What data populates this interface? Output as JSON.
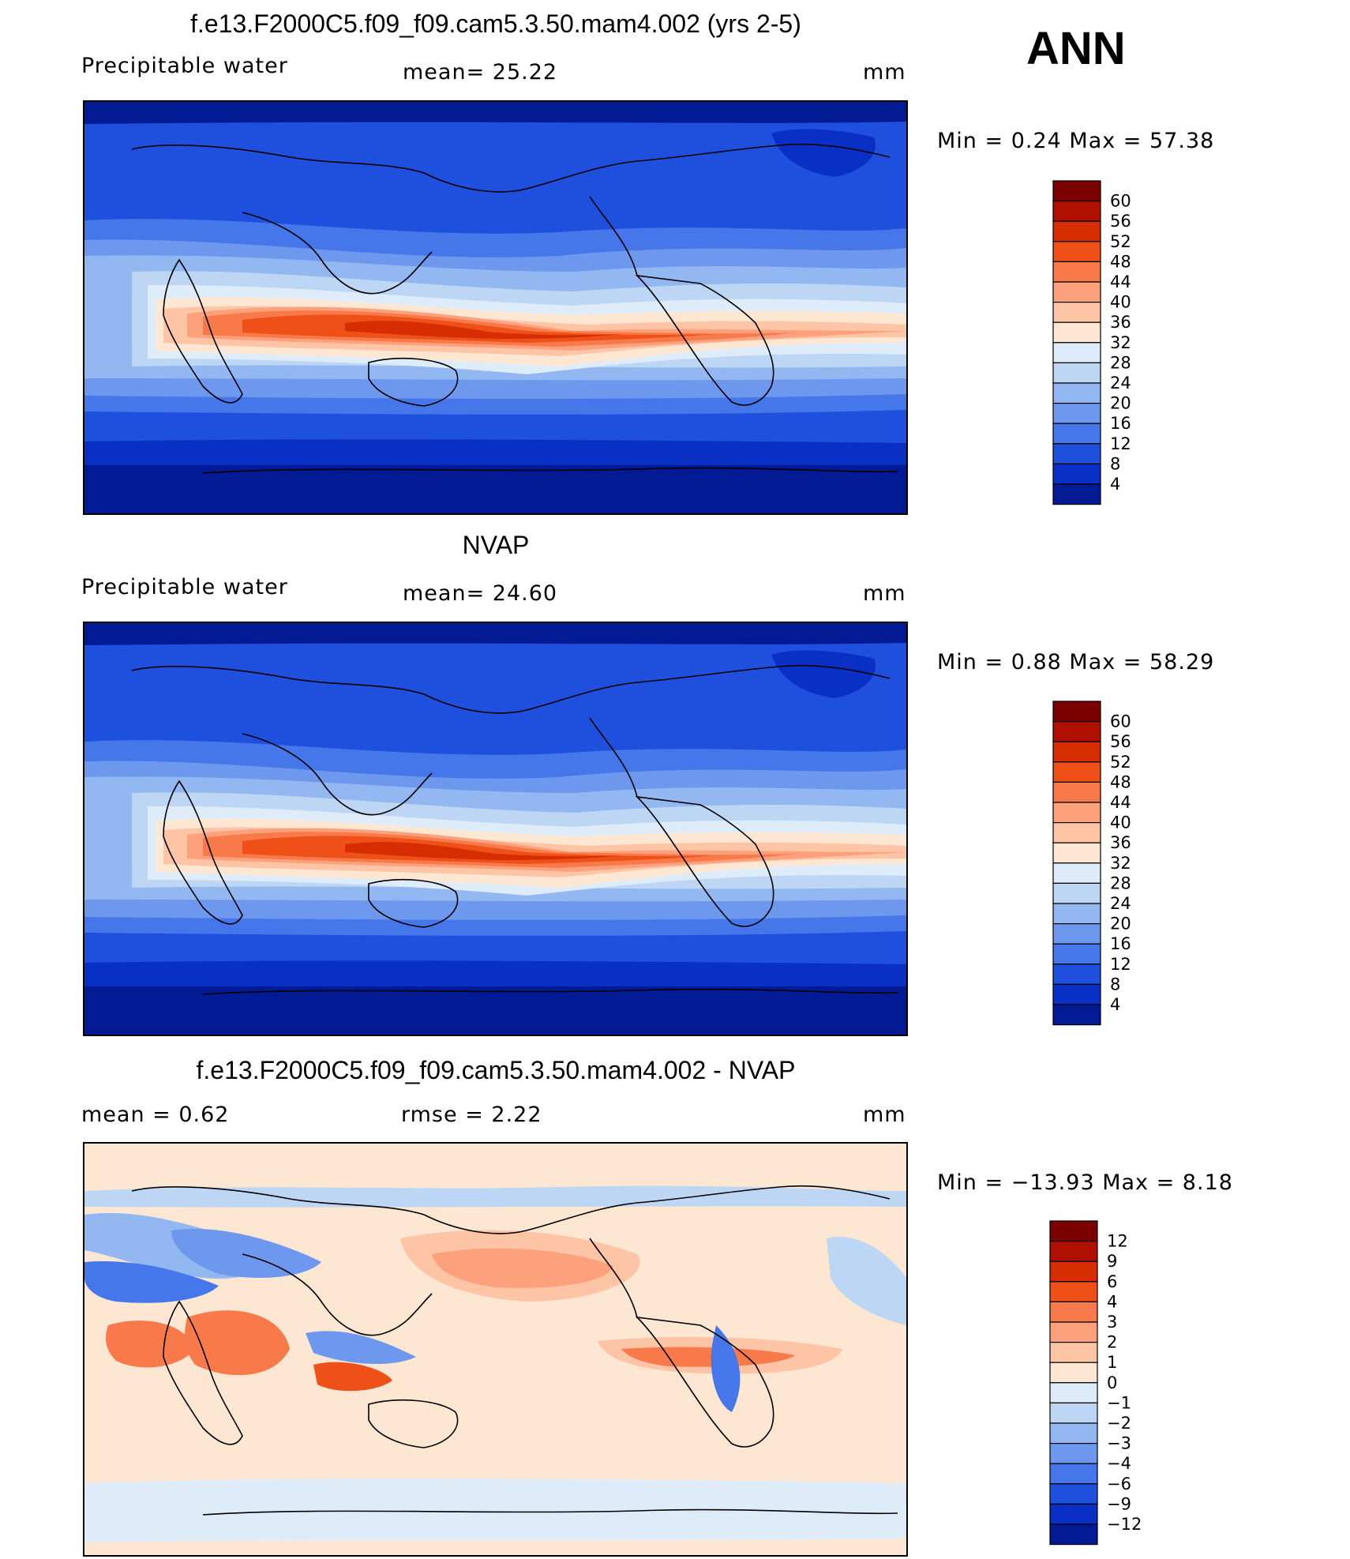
{
  "season": "ANN",
  "panels": [
    {
      "title": "f.e13.F2000C5.f09_f09.cam5.3.50.mam4.002 (yrs 2-5)",
      "left_label": "Precipitable  water",
      "mid_label": "mean=   25.22",
      "unit": "mm",
      "minmax": "Min  =     0.24  Max  =    57.38"
    },
    {
      "title": "NVAP",
      "left_label": "Precipitable  water",
      "mid_label": "mean=   24.60",
      "unit": "mm",
      "minmax": "Min  =     0.88  Max  =    58.29"
    },
    {
      "title": "f.e13.F2000C5.f09_f09.cam5.3.50.mam4.002 - NVAP",
      "left_label": "mean  =      0.62",
      "mid_label": "rmse  =      2.22",
      "unit": "mm",
      "minmax": "Min  = −13.93  Max  =      8.18"
    }
  ],
  "chart_data": [
    {
      "type": "heatmap",
      "title": "f.e13.F2000C5.f09_f09.cam5.3.50.mam4.002 (yrs 2-5)",
      "variable": "Precipitable  water",
      "unit": "mm",
      "mean": 25.22,
      "min": 0.24,
      "max": 57.38,
      "levels": [
        "60",
        "56",
        "52",
        "48",
        "44",
        "40",
        "36",
        "32",
        "28",
        "24",
        "20",
        "16",
        "12",
        "8",
        "4"
      ],
      "colors": [
        "#7b0000",
        "#b01000",
        "#d72d02",
        "#ee5018",
        "#f8794a",
        "#fda07c",
        "#fec4a6",
        "#fde6d2",
        "#deecfa",
        "#bcd6f4",
        "#93b7f0",
        "#6d98ee",
        "#4576ea",
        "#1f4fdd",
        "#0a2fc5",
        "#031a95"
      ]
    },
    {
      "type": "heatmap",
      "title": "NVAP",
      "variable": "Precipitable  water",
      "unit": "mm",
      "mean": 24.6,
      "min": 0.88,
      "max": 58.29,
      "levels": [
        "60",
        "56",
        "52",
        "48",
        "44",
        "40",
        "36",
        "32",
        "28",
        "24",
        "20",
        "16",
        "12",
        "8",
        "4"
      ],
      "colors": [
        "#7b0000",
        "#b01000",
        "#d72d02",
        "#ee5018",
        "#f8794a",
        "#fda07c",
        "#fec4a6",
        "#fde6d2",
        "#deecfa",
        "#bcd6f4",
        "#93b7f0",
        "#6d98ee",
        "#4576ea",
        "#1f4fdd",
        "#0a2fc5",
        "#031a95"
      ]
    },
    {
      "type": "heatmap",
      "title": "f.e13.F2000C5.f09_f09.cam5.3.50.mam4.002 - NVAP",
      "unit": "mm",
      "mean": 0.62,
      "rmse": 2.22,
      "min": -13.93,
      "max": 8.18,
      "levels": [
        "12",
        "9",
        "6",
        "4",
        "3",
        "2",
        "1",
        "0",
        "−1",
        "−2",
        "−3",
        "−4",
        "−6",
        "−9",
        "−12"
      ],
      "colors": [
        "#7b0000",
        "#b01000",
        "#d72d02",
        "#ee5018",
        "#f8794a",
        "#fda07c",
        "#fec4a6",
        "#fde6d2",
        "#deecfa",
        "#bcd6f4",
        "#93b7f0",
        "#6d98ee",
        "#4576ea",
        "#1f4fdd",
        "#0a2fc5",
        "#031a95"
      ]
    }
  ]
}
